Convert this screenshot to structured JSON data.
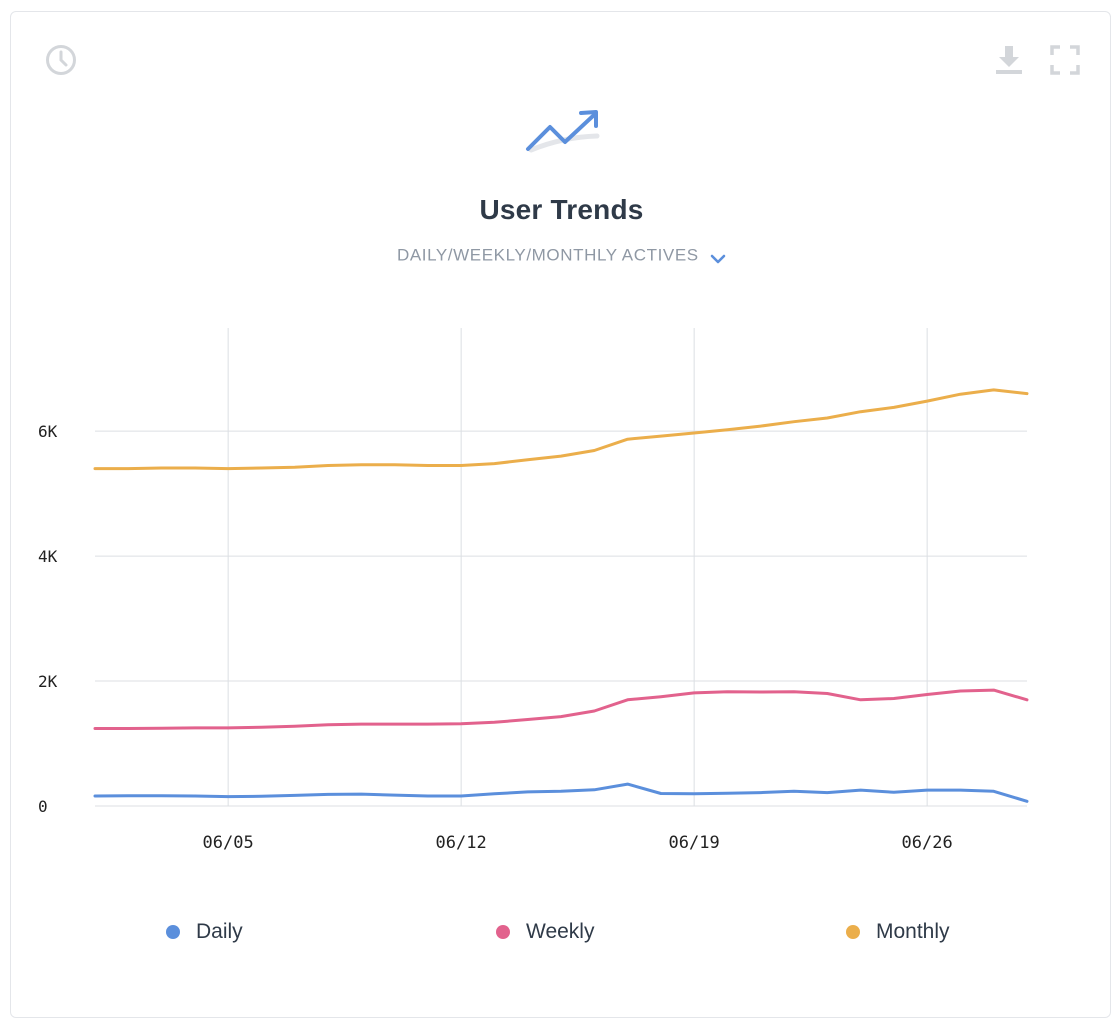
{
  "card": {
    "title": "User Trends",
    "subtitle": "DAILY/WEEKLY/MONTHLY ACTIVES",
    "icons": {
      "history": "clock-icon",
      "download": "download-icon",
      "fullscreen": "fullscreen-icon",
      "header": "trend-arrow-icon",
      "subtitle_dropdown": "chevron-down-icon"
    }
  },
  "colors": {
    "daily": "#5b8fdc",
    "weekly": "#e2628d",
    "monthly": "#ebae4b",
    "grid": "#dcdfe3",
    "axis_text": "#222222",
    "icon_muted": "#d3d6da"
  },
  "chart_data": {
    "type": "line",
    "x": [
      "06/01",
      "06/02",
      "06/03",
      "06/04",
      "06/05",
      "06/06",
      "06/07",
      "06/08",
      "06/09",
      "06/10",
      "06/11",
      "06/12",
      "06/13",
      "06/14",
      "06/15",
      "06/16",
      "06/17",
      "06/18",
      "06/19",
      "06/20",
      "06/21",
      "06/22",
      "06/23",
      "06/24",
      "06/25",
      "06/26",
      "06/27",
      "06/28",
      "06/29"
    ],
    "x_ticks": [
      "06/05",
      "06/12",
      "06/19",
      "06/26"
    ],
    "y_ticks": [
      {
        "value": 0,
        "label": "0"
      },
      {
        "value": 2000,
        "label": "2K"
      },
      {
        "value": 4000,
        "label": "4K"
      },
      {
        "value": 6000,
        "label": "6K"
      }
    ],
    "ylim": [
      0,
      7650
    ],
    "xgrid": true,
    "ygrid": true,
    "legend_position": "bottom",
    "series": [
      {
        "name": "Daily",
        "key": "daily",
        "values": [
          160,
          165,
          165,
          160,
          150,
          155,
          170,
          185,
          190,
          175,
          160,
          160,
          195,
          225,
          235,
          260,
          350,
          200,
          195,
          205,
          215,
          235,
          215,
          255,
          220,
          255,
          255,
          235,
          75
        ]
      },
      {
        "name": "Weekly",
        "key": "weekly",
        "values": [
          1240,
          1240,
          1245,
          1250,
          1250,
          1260,
          1275,
          1300,
          1310,
          1310,
          1310,
          1315,
          1340,
          1385,
          1430,
          1520,
          1700,
          1750,
          1810,
          1830,
          1825,
          1830,
          1800,
          1700,
          1720,
          1785,
          1840,
          1855,
          1700
        ]
      },
      {
        "name": "Monthly",
        "key": "monthly",
        "values": [
          5400,
          5400,
          5410,
          5410,
          5400,
          5410,
          5420,
          5450,
          5460,
          5460,
          5450,
          5450,
          5480,
          5540,
          5600,
          5690,
          5870,
          5920,
          5970,
          6020,
          6080,
          6150,
          6210,
          6310,
          6380,
          6480,
          6590,
          6660,
          6600
        ]
      }
    ]
  }
}
